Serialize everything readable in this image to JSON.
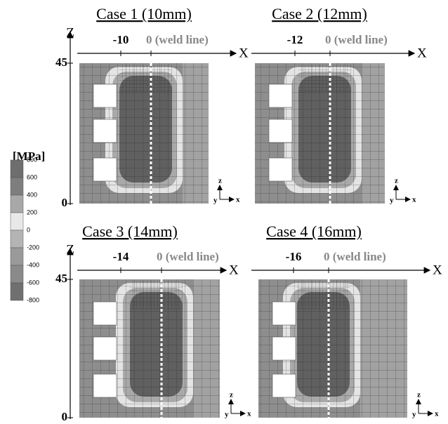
{
  "legend": {
    "unit": "[MPa]",
    "labels": [
      "800",
      "600",
      "400",
      "200",
      "0",
      "-200",
      "-400",
      "-600",
      "-800"
    ]
  },
  "panels": [
    {
      "title": "Case 1 (10mm)",
      "z_axis": "Z",
      "z_top": "45",
      "z_bottom": "0",
      "x_axis": "X",
      "edge": "-10",
      "weld": "0 (weld line)",
      "triad": [
        "z",
        "y",
        "x"
      ]
    },
    {
      "title": "Case 2 (12mm)",
      "x_axis": "X",
      "edge": "-12",
      "weld": "0 (weld line)",
      "triad": [
        "z",
        "y",
        "x"
      ]
    },
    {
      "title": "Case 3 (14mm)",
      "z_axis": "Z",
      "z_top": "45",
      "z_bottom": "0",
      "x_axis": "X",
      "edge": "-14",
      "weld": "0 (weld line)",
      "triad": [
        "z",
        "y",
        "x"
      ]
    },
    {
      "title": "Case 4 (16mm)",
      "x_axis": "X",
      "edge": "-16",
      "weld": "0 (weld line)",
      "triad": [
        "z",
        "y",
        "x"
      ]
    }
  ]
}
